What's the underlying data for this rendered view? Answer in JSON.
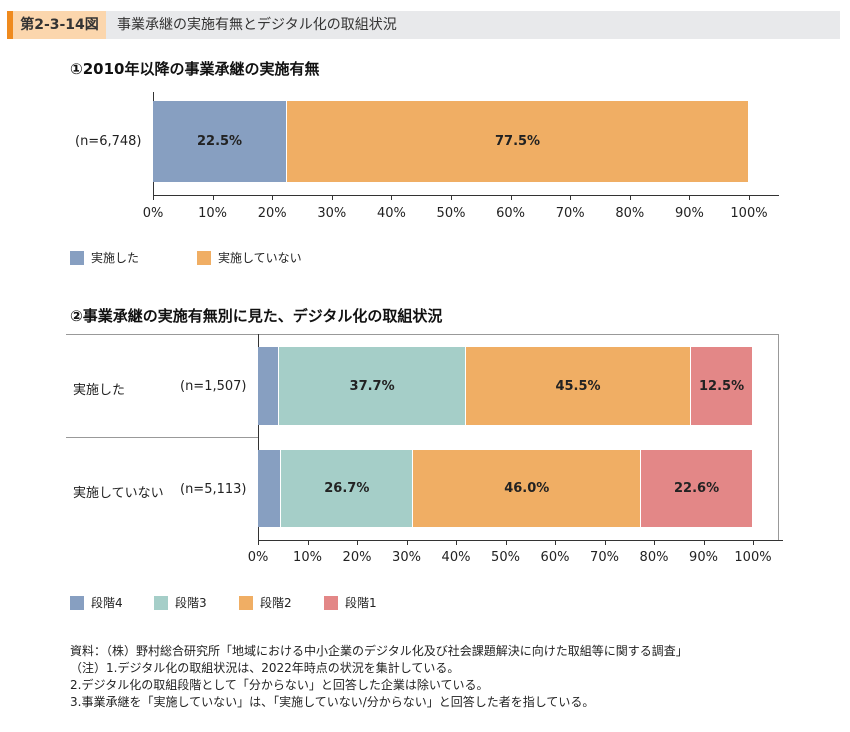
{
  "header": {
    "number": "第2-3-14図",
    "title": "事業承継の実施有無とデジタル化の取組状況"
  },
  "chart_data": [
    {
      "type": "bar",
      "orientation": "horizontal",
      "stacked": true,
      "title": "①2010年以降の事業承継の実施有無",
      "categories": [
        "(n=6,748)"
      ],
      "series": [
        {
          "name": "実施した",
          "color": "#879fc1",
          "values": [
            22.5
          ],
          "labels": [
            "22.5%"
          ]
        },
        {
          "name": "実施していない",
          "color": "#f0ae64",
          "values": [
            77.5
          ],
          "labels": [
            "77.5%"
          ]
        }
      ],
      "xlim": [
        0,
        100
      ],
      "xticks": [
        "0%",
        "10%",
        "20%",
        "30%",
        "40%",
        "50%",
        "60%",
        "70%",
        "80%",
        "90%",
        "100%"
      ],
      "legend": "bottom-left"
    },
    {
      "type": "bar",
      "orientation": "horizontal",
      "stacked": true,
      "title": "②事業承継の実施有無別に見た、デジタル化の取組状況",
      "categories": [
        {
          "name": "実施した",
          "n": "(n=1,507)"
        },
        {
          "name": "実施していない",
          "n": "(n=5,113)"
        }
      ],
      "series": [
        {
          "name": "段階4",
          "color": "#879fc1",
          "values": [
            4.3,
            4.7
          ],
          "labels": [
            "",
            ""
          ]
        },
        {
          "name": "段階3",
          "color": "#a5cec8",
          "values": [
            37.7,
            26.7
          ],
          "labels": [
            "37.7%",
            "26.7%"
          ]
        },
        {
          "name": "段階2",
          "color": "#f0ae64",
          "values": [
            45.5,
            46.0
          ],
          "labels": [
            "45.5%",
            "46.0%"
          ]
        },
        {
          "name": "段階1",
          "color": "#e38787",
          "values": [
            12.5,
            22.6
          ],
          "labels": [
            "12.5%",
            "22.6%"
          ]
        }
      ],
      "xlim": [
        0,
        100
      ],
      "xticks": [
        "0%",
        "10%",
        "20%",
        "30%",
        "40%",
        "50%",
        "60%",
        "70%",
        "80%",
        "90%",
        "100%"
      ],
      "legend": "bottom-left"
    }
  ],
  "notes": [
    "資料：（株）野村総合研究所「地域における中小企業のデジタル化及び社会課題解決に向けた取組等に関する調査」",
    "（注）1.デジタル化の取組状況は、2022年時点の状況を集計している。",
    "2.デジタル化の取組段階として「分からない」と回答した企業は除いている。",
    "3.事業承継を「実施していない」は、「実施していない/分からない」と回答した者を指している。"
  ]
}
